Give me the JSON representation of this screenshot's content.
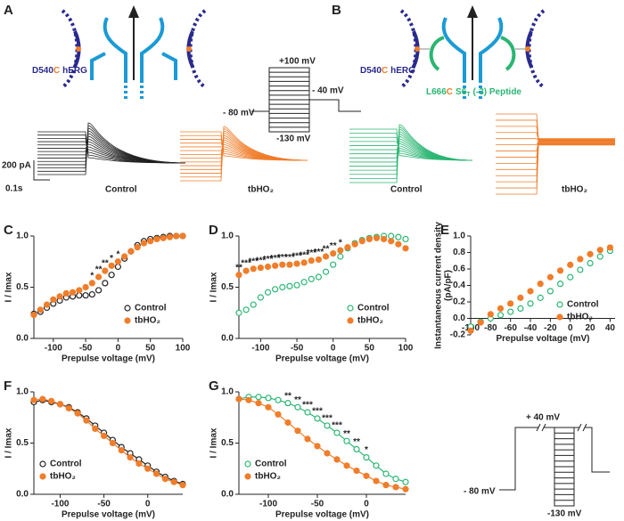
{
  "panel_labels": {
    "a": "A",
    "b": "B"
  },
  "channel_label": {
    "residue": "D540",
    "mutation": "C",
    "name": "hERG"
  },
  "peptide_label": {
    "residue": "L666",
    "mutation": "C",
    "segment": "S6",
    "subscript": "T",
    "suffix": "(-3) Peptide"
  },
  "protocol_a": {
    "top": "+100 mV",
    "test": "- 40 mV",
    "hold": "- 80 mV",
    "bottom": "-130 mV"
  },
  "scale_bar": {
    "current": "200 pA",
    "time": "0.1s"
  },
  "trace_labels": {
    "control": "Control",
    "treatment": "tbHO₂"
  },
  "protocol_g": {
    "top": "+ 40 mV",
    "hold": "- 80 mV",
    "bottom": "-130 mV"
  },
  "chart_data": [
    {
      "type": "scatter",
      "panel": "C",
      "xlabel": "Prepulse voltage (mV)",
      "ylabel": "I / Imax",
      "xlim": [
        -130,
        100
      ],
      "xticks": [
        -100,
        -50,
        0,
        50,
        100
      ],
      "ylim": [
        0,
        1
      ],
      "yticks": [
        {
          "value": 0,
          "label": "0.0"
        },
        0.5,
        {
          "value": 1,
          "label": "1.0"
        }
      ],
      "legend": "lower right",
      "x": [
        -130,
        -120,
        -110,
        -100,
        -90,
        -80,
        -70,
        -60,
        -50,
        -40,
        -30,
        -20,
        -10,
        0,
        10,
        20,
        30,
        40,
        50,
        60,
        70,
        80,
        90,
        100
      ],
      "series": [
        {
          "name": "Control",
          "color": "#222222",
          "marker": "open",
          "values": [
            0.24,
            0.26,
            0.3,
            0.34,
            0.37,
            0.4,
            0.41,
            0.42,
            0.42,
            0.43,
            0.47,
            0.54,
            0.62,
            0.7,
            0.78,
            0.85,
            0.91,
            0.95,
            0.97,
            0.98,
            0.99,
            1.0,
            1.0,
            1.0
          ]
        },
        {
          "name": "tbHO₂",
          "color": "#f07d2a",
          "marker": "filled",
          "values": [
            0.23,
            0.28,
            0.33,
            0.38,
            0.41,
            0.44,
            0.45,
            0.47,
            0.5,
            0.54,
            0.6,
            0.66,
            0.71,
            0.75,
            0.8,
            0.85,
            0.89,
            0.93,
            0.95,
            0.97,
            0.98,
            0.99,
            1.0,
            1.0
          ]
        }
      ],
      "annotations": [
        {
          "x": -40,
          "label": "*"
        },
        {
          "x": -30,
          "label": "**"
        },
        {
          "x": -20,
          "label": "**"
        },
        {
          "x": -10,
          "label": "*"
        },
        {
          "x": 0,
          "label": "*"
        }
      ]
    },
    {
      "type": "scatter",
      "panel": "D",
      "xlabel": "Prepulse voltage (mV)",
      "ylabel": "I / Imax",
      "xlim": [
        -130,
        100
      ],
      "xticks": [
        -100,
        -50,
        0,
        50,
        100
      ],
      "ylim": [
        0,
        1
      ],
      "yticks": [
        {
          "value": 0,
          "label": "0.0"
        },
        0.5,
        {
          "value": 1,
          "label": "1.0"
        }
      ],
      "legend": "lower right",
      "x": [
        -130,
        -120,
        -110,
        -100,
        -90,
        -80,
        -70,
        -60,
        -50,
        -40,
        -30,
        -20,
        -10,
        0,
        10,
        20,
        30,
        40,
        50,
        60,
        70,
        80,
        90,
        100
      ],
      "series": [
        {
          "name": "Control",
          "color": "#2bb673",
          "marker": "open",
          "values": [
            0.25,
            0.28,
            0.33,
            0.4,
            0.45,
            0.48,
            0.5,
            0.51,
            0.52,
            0.55,
            0.58,
            0.6,
            0.65,
            0.72,
            0.8,
            0.88,
            0.93,
            0.96,
            0.98,
            0.99,
            1.0,
            1.0,
            0.99,
            0.97
          ]
        },
        {
          "name": "tbHO₂",
          "color": "#f07d2a",
          "marker": "filled",
          "values": [
            0.62,
            0.66,
            0.68,
            0.69,
            0.7,
            0.71,
            0.72,
            0.72,
            0.73,
            0.74,
            0.76,
            0.77,
            0.8,
            0.83,
            0.86,
            0.89,
            0.92,
            0.95,
            0.97,
            0.98,
            0.97,
            0.95,
            0.92,
            0.88
          ]
        }
      ],
      "annotations": [
        {
          "x": -130,
          "label": "**"
        },
        {
          "x": -120,
          "label": "***"
        },
        {
          "x": -110,
          "label": "***"
        },
        {
          "x": -100,
          "label": "***"
        },
        {
          "x": -90,
          "label": "***"
        },
        {
          "x": -80,
          "label": "***"
        },
        {
          "x": -70,
          "label": "***"
        },
        {
          "x": -60,
          "label": "***"
        },
        {
          "x": -50,
          "label": "***"
        },
        {
          "x": -40,
          "label": "***"
        },
        {
          "x": -30,
          "label": "***"
        },
        {
          "x": -20,
          "label": "***"
        },
        {
          "x": -10,
          "label": "**"
        },
        {
          "x": 0,
          "label": "**"
        },
        {
          "x": 10,
          "label": "*"
        }
      ]
    },
    {
      "type": "scatter",
      "panel": "E",
      "xlabel": "Prepulse voltage (mV)",
      "ylabel": [
        "Instantaneous current density",
        "(pA/pF)"
      ],
      "xlim": [
        -100,
        45
      ],
      "xticks": [
        -100,
        -80,
        -60,
        -40,
        -20,
        0,
        20,
        40
      ],
      "ylim": [
        -0.2,
        1
      ],
      "yticks": [
        -0.2,
        {
          "value": 0,
          "label": "0.0"
        },
        0.2,
        0.4,
        0.6,
        0.8,
        {
          "value": 1,
          "label": "1.0"
        }
      ],
      "x_axis_at_zero": true,
      "legend": "lower right",
      "x": [
        -100,
        -90,
        -80,
        -70,
        -60,
        -50,
        -40,
        -30,
        -20,
        -10,
        0,
        10,
        20,
        30,
        40
      ],
      "series": [
        {
          "name": "Control",
          "color": "#2bb673",
          "marker": "open",
          "values": [
            -0.1,
            -0.04,
            0.0,
            0.04,
            0.08,
            0.12,
            0.18,
            0.25,
            0.33,
            0.42,
            0.5,
            0.59,
            0.67,
            0.75,
            0.82
          ]
        },
        {
          "name": "tbHO₂",
          "color": "#f07d2a",
          "marker": "filled",
          "values": [
            -0.15,
            -0.05,
            0.05,
            0.12,
            0.18,
            0.25,
            0.33,
            0.42,
            0.5,
            0.58,
            0.65,
            0.72,
            0.78,
            0.83,
            0.86
          ]
        }
      ]
    },
    {
      "type": "scatter",
      "panel": "F",
      "xlabel": "Prepulse voltage (mV)",
      "ylabel": "I / Imax",
      "xlim": [
        -130,
        40
      ],
      "xticks": [
        -100,
        -50,
        0
      ],
      "ylim": [
        0,
        1
      ],
      "yticks": [
        {
          "value": 0,
          "label": "0.0"
        },
        0.5,
        {
          "value": 1,
          "label": "1.0"
        }
      ],
      "legend": "lower left",
      "fit": true,
      "x": [
        -130,
        -120,
        -110,
        -100,
        -90,
        -80,
        -70,
        -60,
        -50,
        -40,
        -30,
        -20,
        -10,
        0,
        10,
        20,
        30,
        40
      ],
      "series": [
        {
          "name": "Control",
          "color": "#222222",
          "marker": "open",
          "values": [
            0.9,
            0.92,
            0.9,
            0.88,
            0.85,
            0.8,
            0.74,
            0.67,
            0.6,
            0.53,
            0.46,
            0.4,
            0.34,
            0.28,
            0.22,
            0.17,
            0.13,
            0.1
          ]
        },
        {
          "name": "tbHO₂",
          "color": "#f07d2a",
          "marker": "filled",
          "values": [
            0.92,
            0.93,
            0.91,
            0.88,
            0.84,
            0.79,
            0.72,
            0.64,
            0.57,
            0.5,
            0.43,
            0.36,
            0.3,
            0.25,
            0.2,
            0.15,
            0.12,
            0.09
          ]
        }
      ]
    },
    {
      "type": "scatter",
      "panel": "G",
      "xlabel": "Prepulse voltage (mV)",
      "ylabel": "I / Imax",
      "xlim": [
        -130,
        40
      ],
      "xticks": [
        -100,
        -50,
        0
      ],
      "ylim": [
        0,
        1
      ],
      "yticks": [
        {
          "value": 0,
          "label": "0.0"
        },
        0.5,
        {
          "value": 1,
          "label": "1.0"
        }
      ],
      "legend": "lower left",
      "fit": true,
      "x": [
        -130,
        -120,
        -110,
        -100,
        -90,
        -80,
        -70,
        -60,
        -50,
        -40,
        -30,
        -20,
        -10,
        0,
        10,
        20,
        30,
        40
      ],
      "series": [
        {
          "name": "Control",
          "color": "#2bb673",
          "marker": "open",
          "values": [
            0.93,
            0.95,
            0.95,
            0.94,
            0.92,
            0.89,
            0.85,
            0.8,
            0.74,
            0.67,
            0.6,
            0.52,
            0.44,
            0.36,
            0.28,
            0.2,
            0.15,
            0.12
          ]
        },
        {
          "name": "tbHO₂",
          "color": "#f07d2a",
          "marker": "filled",
          "values": [
            0.93,
            0.92,
            0.89,
            0.85,
            0.78,
            0.7,
            0.62,
            0.54,
            0.47,
            0.4,
            0.34,
            0.28,
            0.23,
            0.18,
            0.13,
            0.09,
            0.07,
            0.05
          ]
        }
      ],
      "annotations": [
        {
          "x": -80,
          "label": "**"
        },
        {
          "x": -70,
          "label": "**"
        },
        {
          "x": -60,
          "label": "***"
        },
        {
          "x": -50,
          "label": "***"
        },
        {
          "x": -40,
          "label": "***"
        },
        {
          "x": -30,
          "label": "***"
        },
        {
          "x": -20,
          "label": "**"
        },
        {
          "x": -10,
          "label": "**"
        },
        {
          "x": 0,
          "label": "*"
        }
      ]
    }
  ]
}
